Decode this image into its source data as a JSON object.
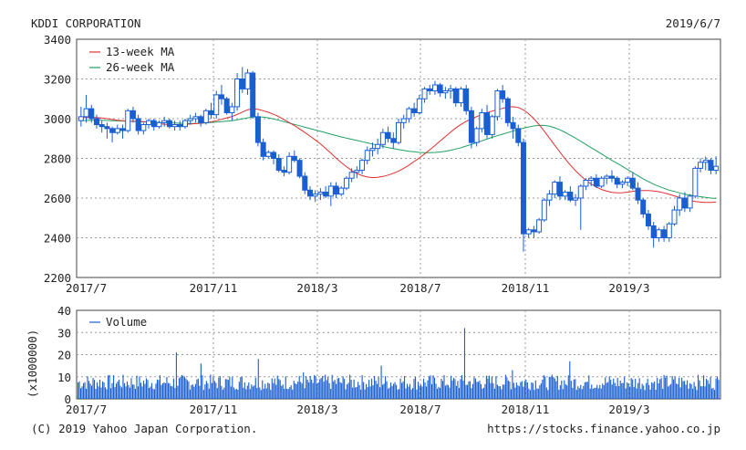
{
  "header": {
    "company": "KDDI CORPORATION",
    "date": "2019/6/7"
  },
  "footer": {
    "copyright": "(C) 2019 Yahoo Japan Corporation.",
    "url": "https://stocks.finance.yahoo.co.jp"
  },
  "colors": {
    "candle": "#1a5fd0",
    "ma13": "#e03030",
    "ma26": "#20a060",
    "volume": "#1a5fd0",
    "grid": "#9a9a9a",
    "frame": "#444444"
  },
  "chart_data": [
    {
      "type": "candlestick",
      "title": "KDDI CORPORATION",
      "ylim": [
        2200,
        3400
      ],
      "y_ticks": [
        "3400",
        "3200",
        "3000",
        "2800",
        "2600",
        "2400",
        "2200"
      ],
      "x_ticks": [
        "2017/7",
        "2017/11",
        "2018/3",
        "2018/7",
        "2018/11",
        "2019/3"
      ],
      "grid": true,
      "legend": {
        "position": "top-left",
        "entries": [
          {
            "name": "13-week MA",
            "color": "#e03030"
          },
          {
            "name": "26-week MA",
            "color": "#20a060"
          }
        ]
      },
      "candles": [
        [
          2990,
          3060,
          2960,
          3010
        ],
        [
          3010,
          3120,
          2980,
          3050
        ],
        [
          3050,
          3070,
          2980,
          3000
        ],
        [
          3000,
          3020,
          2950,
          2970
        ],
        [
          2970,
          2990,
          2930,
          2960
        ],
        [
          2960,
          2980,
          2900,
          2950
        ],
        [
          2950,
          2960,
          2880,
          2930
        ],
        [
          2930,
          2970,
          2920,
          2950
        ],
        [
          2950,
          2970,
          2900,
          2940
        ],
        [
          2940,
          3050,
          2930,
          3040
        ],
        [
          3040,
          3060,
          2980,
          3000
        ],
        [
          3000,
          3020,
          2920,
          2940
        ],
        [
          2940,
          2980,
          2920,
          2970
        ],
        [
          2970,
          3000,
          2950,
          2990
        ],
        [
          2990,
          3000,
          2940,
          2960
        ],
        [
          2960,
          2990,
          2950,
          2980
        ],
        [
          2980,
          3010,
          2960,
          2990
        ],
        [
          2990,
          3000,
          2950,
          2960
        ],
        [
          2960,
          2990,
          2940,
          2970
        ],
        [
          2970,
          2990,
          2940,
          2960
        ],
        [
          2960,
          3000,
          2950,
          2990
        ],
        [
          2990,
          3020,
          2970,
          3000
        ],
        [
          3000,
          3030,
          2980,
          3010
        ],
        [
          3010,
          3020,
          2960,
          2980
        ],
        [
          2980,
          3050,
          2970,
          3040
        ],
        [
          3040,
          3080,
          3000,
          3020
        ],
        [
          3020,
          3140,
          3000,
          3120
        ],
        [
          3120,
          3170,
          3070,
          3100
        ],
        [
          3100,
          3110,
          3020,
          3030
        ],
        [
          3030,
          3080,
          2990,
          3060
        ],
        [
          3060,
          3230,
          3040,
          3200
        ],
        [
          3200,
          3260,
          3130,
          3150
        ],
        [
          3150,
          3250,
          3120,
          3230
        ],
        [
          3230,
          3240,
          3000,
          3010
        ],
        [
          3010,
          3030,
          2860,
          2880
        ],
        [
          2880,
          2900,
          2790,
          2810
        ],
        [
          2810,
          2840,
          2800,
          2830
        ],
        [
          2830,
          2840,
          2770,
          2800
        ],
        [
          2800,
          2820,
          2730,
          2740
        ],
        [
          2740,
          2760,
          2710,
          2730
        ],
        [
          2730,
          2830,
          2720,
          2810
        ],
        [
          2810,
          2840,
          2780,
          2790
        ],
        [
          2790,
          2800,
          2700,
          2710
        ],
        [
          2710,
          2730,
          2620,
          2640
        ],
        [
          2640,
          2660,
          2590,
          2610
        ],
        [
          2610,
          2640,
          2580,
          2620
        ],
        [
          2620,
          2650,
          2590,
          2630
        ],
        [
          2630,
          2660,
          2600,
          2610
        ],
        [
          2610,
          2680,
          2560,
          2660
        ],
        [
          2660,
          2680,
          2600,
          2620
        ],
        [
          2620,
          2660,
          2610,
          2650
        ],
        [
          2650,
          2710,
          2640,
          2700
        ],
        [
          2700,
          2750,
          2680,
          2730
        ],
        [
          2730,
          2760,
          2700,
          2740
        ],
        [
          2740,
          2800,
          2720,
          2790
        ],
        [
          2790,
          2860,
          2770,
          2840
        ],
        [
          2840,
          2880,
          2810,
          2850
        ],
        [
          2850,
          2900,
          2820,
          2870
        ],
        [
          2870,
          2950,
          2850,
          2930
        ],
        [
          2930,
          2960,
          2880,
          2900
        ],
        [
          2900,
          2930,
          2850,
          2880
        ],
        [
          2880,
          3000,
          2870,
          2980
        ],
        [
          2980,
          3020,
          2950,
          3000
        ],
        [
          3000,
          3060,
          2980,
          3050
        ],
        [
          3050,
          3080,
          3010,
          3030
        ],
        [
          3030,
          3120,
          3020,
          3100
        ],
        [
          3100,
          3160,
          3080,
          3150
        ],
        [
          3150,
          3170,
          3120,
          3140
        ],
        [
          3140,
          3190,
          3120,
          3170
        ],
        [
          3170,
          3180,
          3110,
          3130
        ],
        [
          3130,
          3160,
          3100,
          3140
        ],
        [
          3140,
          3170,
          3100,
          3150
        ],
        [
          3150,
          3160,
          3060,
          3080
        ],
        [
          3080,
          3160,
          3060,
          3150
        ],
        [
          3150,
          3170,
          3020,
          3040
        ],
        [
          3040,
          3060,
          2850,
          2880
        ],
        [
          2880,
          2960,
          2860,
          2950
        ],
        [
          2950,
          3050,
          2930,
          3030
        ],
        [
          3030,
          3070,
          2900,
          2920
        ],
        [
          2920,
          3020,
          2900,
          3010
        ],
        [
          3010,
          3150,
          2990,
          3140
        ],
        [
          3140,
          3170,
          3080,
          3100
        ],
        [
          3100,
          3110,
          2960,
          2980
        ],
        [
          2980,
          3010,
          2900,
          2950
        ],
        [
          2950,
          2970,
          2860,
          2880
        ],
        [
          2880,
          2900,
          2330,
          2420
        ],
        [
          2420,
          2450,
          2400,
          2440
        ],
        [
          2440,
          2460,
          2400,
          2430
        ],
        [
          2430,
          2500,
          2420,
          2490
        ],
        [
          2490,
          2600,
          2480,
          2590
        ],
        [
          2590,
          2640,
          2560,
          2620
        ],
        [
          2620,
          2690,
          2600,
          2680
        ],
        [
          2680,
          2710,
          2590,
          2610
        ],
        [
          2610,
          2640,
          2590,
          2630
        ],
        [
          2630,
          2660,
          2580,
          2590
        ],
        [
          2590,
          2620,
          2560,
          2600
        ],
        [
          2600,
          2670,
          2440,
          2660
        ],
        [
          2660,
          2700,
          2640,
          2690
        ],
        [
          2690,
          2710,
          2660,
          2700
        ],
        [
          2700,
          2720,
          2650,
          2660
        ],
        [
          2660,
          2710,
          2650,
          2700
        ],
        [
          2700,
          2720,
          2670,
          2710
        ],
        [
          2710,
          2740,
          2680,
          2700
        ],
        [
          2700,
          2710,
          2650,
          2670
        ],
        [
          2670,
          2690,
          2650,
          2680
        ],
        [
          2680,
          2710,
          2660,
          2700
        ],
        [
          2700,
          2730,
          2640,
          2650
        ],
        [
          2650,
          2680,
          2570,
          2590
        ],
        [
          2590,
          2600,
          2500,
          2520
        ],
        [
          2520,
          2540,
          2440,
          2460
        ],
        [
          2460,
          2480,
          2350,
          2400
        ],
        [
          2400,
          2450,
          2380,
          2440
        ],
        [
          2440,
          2460,
          2380,
          2400
        ],
        [
          2400,
          2480,
          2380,
          2470
        ],
        [
          2470,
          2560,
          2460,
          2540
        ],
        [
          2540,
          2620,
          2510,
          2600
        ],
        [
          2600,
          2630,
          2530,
          2550
        ],
        [
          2550,
          2620,
          2530,
          2610
        ],
        [
          2610,
          2760,
          2600,
          2750
        ],
        [
          2750,
          2800,
          2730,
          2780
        ],
        [
          2780,
          2810,
          2740,
          2790
        ],
        [
          2790,
          2800,
          2720,
          2740
        ],
        [
          2740,
          2810,
          2720,
          2760
        ]
      ],
      "ma13": [
        3005,
        3006,
        3007,
        3005,
        3003,
        3000,
        2996,
        2992,
        2990,
        2988,
        2987,
        2986,
        2985,
        2982,
        2978,
        2975,
        2972,
        2970,
        2970,
        2970,
        2972,
        2973,
        2975,
        2977,
        2980,
        2984,
        2990,
        2997,
        3004,
        3011,
        3021,
        3033,
        3045,
        3050,
        3047,
        3040,
        3032,
        3022,
        3010,
        2995,
        2980,
        2965,
        2948,
        2930,
        2912,
        2893,
        2873,
        2850,
        2826,
        2802,
        2779,
        2758,
        2739,
        2724,
        2713,
        2706,
        2703,
        2705,
        2709,
        2716,
        2725,
        2736,
        2750,
        2766,
        2784,
        2802,
        2822,
        2843,
        2865,
        2888,
        2910,
        2932,
        2953,
        2971,
        2986,
        2999,
        3010,
        3020,
        3030,
        3038,
        3045,
        3052,
        3058,
        3060,
        3056,
        3044,
        3025,
        3000,
        2970,
        2937,
        2902,
        2866,
        2832,
        2798,
        2767,
        2738,
        2712,
        2690,
        2671,
        2656,
        2643,
        2635,
        2629,
        2626,
        2627,
        2630,
        2634,
        2637,
        2638,
        2638,
        2636,
        2632,
        2626,
        2619,
        2611,
        2603,
        2595,
        2588,
        2583,
        2580,
        2578,
        2578,
        2580
      ],
      "ma26": [
        2990,
        2991,
        2992,
        2992,
        2992,
        2991,
        2990,
        2989,
        2988,
        2987,
        2986,
        2985,
        2984,
        2983,
        2982,
        2981,
        2980,
        2979,
        2978,
        2977,
        2977,
        2976,
        2976,
        2977,
        2979,
        2981,
        2983,
        2985,
        2987,
        2990,
        2994,
        2999,
        3004,
        3008,
        3009,
        3008,
        3004,
        2998,
        2992,
        2985,
        2978,
        2971,
        2964,
        2957,
        2950,
        2943,
        2936,
        2929,
        2922,
        2915,
        2908,
        2902,
        2896,
        2890,
        2884,
        2878,
        2872,
        2866,
        2860,
        2854,
        2849,
        2844,
        2840,
        2836,
        2833,
        2830,
        2829,
        2829,
        2830,
        2832,
        2836,
        2841,
        2847,
        2854,
        2862,
        2870,
        2879,
        2888,
        2897,
        2906,
        2914,
        2922,
        2930,
        2938,
        2945,
        2952,
        2958,
        2963,
        2966,
        2966,
        2962,
        2954,
        2944,
        2931,
        2917,
        2902,
        2886,
        2870,
        2854,
        2838,
        2822,
        2806,
        2790,
        2775,
        2760,
        2744,
        2728,
        2712,
        2697,
        2683,
        2670,
        2659,
        2649,
        2640,
        2633,
        2626,
        2620,
        2615,
        2611,
        2607,
        2603,
        2600,
        2598
      ]
    },
    {
      "type": "bar",
      "ylim": [
        0,
        40
      ],
      "y_ticks": [
        "40",
        "30",
        "20",
        "10",
        "0"
      ],
      "ylabel": "(x1000000)",
      "x_ticks": [
        "2017/7",
        "2017/11",
        "2018/3",
        "2018/7",
        "2018/11",
        "2019/3"
      ],
      "grid": true,
      "legend": {
        "position": "top-left",
        "entries": [
          {
            "name": "Volume",
            "color": "#1a5fd0"
          }
        ]
      },
      "spikes": [
        [
          72,
          21
        ],
        [
          90,
          16
        ],
        [
          132,
          18
        ],
        [
          165,
          12
        ],
        [
          222,
          15
        ],
        [
          283,
          32
        ],
        [
          318,
          13
        ],
        [
          345,
          10
        ],
        [
          360,
          17
        ]
      ],
      "base_range": [
        4,
        11
      ]
    }
  ]
}
